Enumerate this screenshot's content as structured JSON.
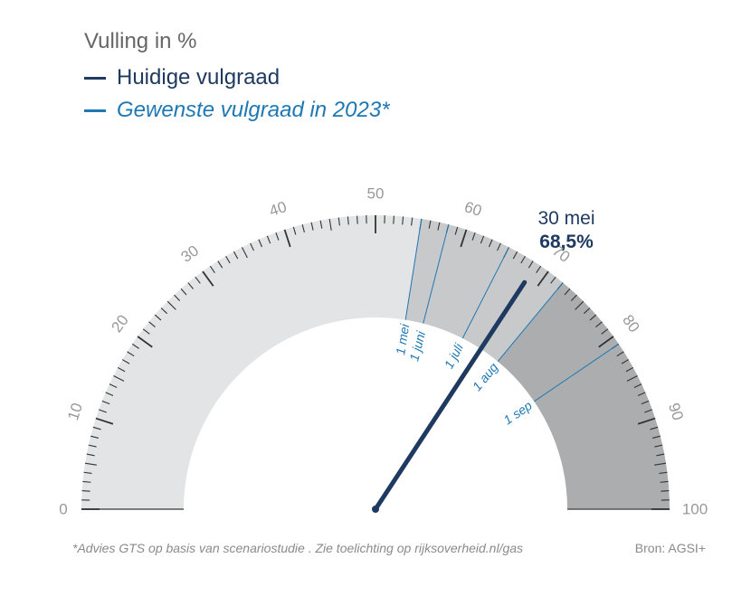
{
  "title": "Vulling in %",
  "legend": {
    "current": {
      "label": "Huidige vulgraad",
      "color": "#1f3a60"
    },
    "desired": {
      "label": "Gewenste vulgraad in 2023*",
      "color": "#1e78b4"
    }
  },
  "footnote": "*Advies GTS op basis van scenariostudie . Zie toelichting op rijksoverheid.nl/gas",
  "source": "Bron: AGSI+",
  "chart_data": {
    "type": "gauge",
    "range": [
      0,
      100
    ],
    "tick_labels": [
      "0",
      "10",
      "20",
      "30",
      "40",
      "50",
      "60",
      "70",
      "80",
      "90",
      "100"
    ],
    "current": {
      "date_label": "30 mei",
      "value": 68.5,
      "value_label": "68,5%"
    },
    "targets": [
      {
        "label": "1 mei",
        "value": 55
      },
      {
        "label": "1 juni",
        "value": 58
      },
      {
        "label": "1 juli",
        "value": 65
      },
      {
        "label": "1 aug",
        "value": 72
      },
      {
        "label": "1 sep",
        "value": 81
      }
    ],
    "colors": {
      "band_light": "#e3e4e5",
      "band_mid": "#c8c9cb",
      "band_dark": "#acadaf",
      "needle": "#1f3a60",
      "target_line": "#1e78b4",
      "tick": "#333333",
      "tick_label": "#999999"
    }
  }
}
